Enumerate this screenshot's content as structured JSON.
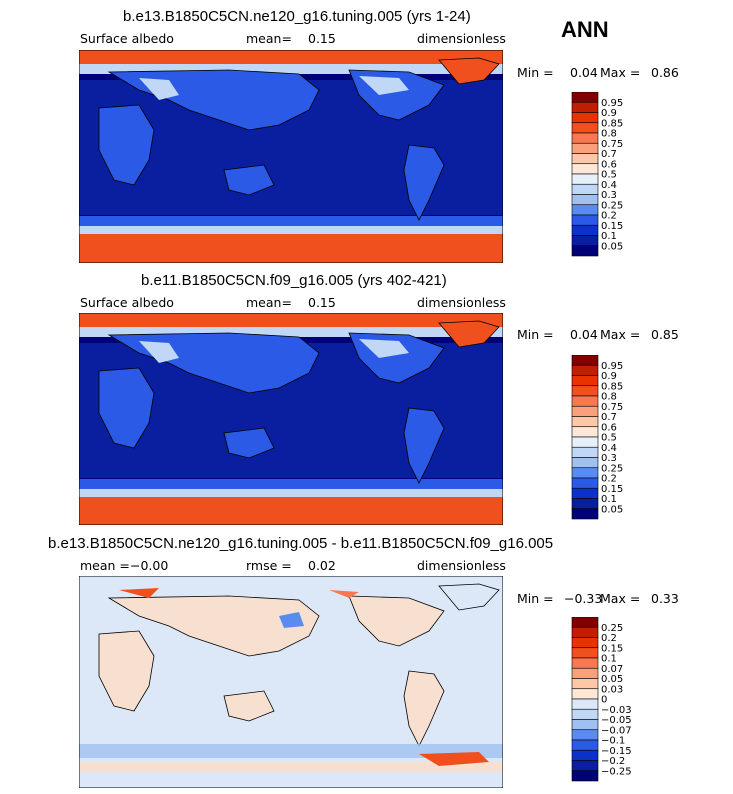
{
  "season": "ANN",
  "panels": [
    {
      "title": "b.e13.B1850C5CN.ne120_g16.tuning.005 (yrs 1-24)",
      "field": "Surface albedo",
      "stat_label": "mean=",
      "stat_value": "0.15",
      "units": "dimensionless",
      "min_label": "Min =",
      "min_value": "0.04",
      "max_label": "Max =",
      "max_value": "0.86",
      "colorbar": [
        "0.95",
        "0.9",
        "0.85",
        "0.8",
        "0.75",
        "0.7",
        "0.6",
        "0.5",
        "0.4",
        "0.3",
        "0.25",
        "0.2",
        "0.15",
        "0.1",
        "0.05"
      ],
      "colors": [
        "#800000",
        "#c01e00",
        "#e83200",
        "#f0501e",
        "#f87850",
        "#fba07c",
        "#fdc8a8",
        "#fde8d8",
        "#e6f0fa",
        "#c0d8f5",
        "#a0c0f0",
        "#5a8cf0",
        "#2a5ae6",
        "#0a32c8",
        "#0a1ea0",
        "#000078"
      ]
    },
    {
      "title": "b.e11.B1850C5CN.f09_g16.005 (yrs 402-421)",
      "field": "Surface albedo",
      "stat_label": "mean=",
      "stat_value": "0.15",
      "units": "dimensionless",
      "min_label": "Min =",
      "min_value": "0.04",
      "max_label": "Max =",
      "max_value": "0.85",
      "colorbar": [
        "0.95",
        "0.9",
        "0.85",
        "0.8",
        "0.75",
        "0.7",
        "0.6",
        "0.5",
        "0.4",
        "0.3",
        "0.25",
        "0.2",
        "0.15",
        "0.1",
        "0.05"
      ],
      "colors": [
        "#800000",
        "#c01e00",
        "#e83200",
        "#f0501e",
        "#f87850",
        "#fba07c",
        "#fdc8a8",
        "#fde8d8",
        "#e6f0fa",
        "#c0d8f5",
        "#a0c0f0",
        "#5a8cf0",
        "#2a5ae6",
        "#0a32c8",
        "#0a1ea0",
        "#000078"
      ]
    },
    {
      "title": "b.e13.B1850C5CN.ne120_g16.tuning.005 - b.e11.B1850C5CN.f09_g16.005",
      "field": "mean =",
      "stat_label": "rmse =",
      "stat_value": "0.02",
      "field_value": "−0.00",
      "units": "dimensionless",
      "min_label": "Min =",
      "min_value": "−0.33",
      "max_label": "Max =",
      "max_value": "0.33",
      "colorbar": [
        "0.25",
        "0.2",
        "0.15",
        "0.1",
        "0.07",
        "0.05",
        "0.03",
        "0",
        "−0.03",
        "−0.05",
        "−0.07",
        "−0.1",
        "−0.15",
        "−0.2",
        "−0.25"
      ],
      "colors": [
        "#800000",
        "#c01e00",
        "#e83200",
        "#f0501e",
        "#f87850",
        "#fba07c",
        "#fdc8a8",
        "#fde8d8",
        "#dce8f8",
        "#c0d8f5",
        "#a0c0f0",
        "#5a8cf0",
        "#2a5ae6",
        "#0a32c8",
        "#0a1ea0",
        "#000078"
      ]
    }
  ],
  "chart_data": [
    {
      "type": "heatmap",
      "title": "b.e13.B1850C5CN.ne120_g16.tuning.005 (yrs 1-24)",
      "variable": "Surface albedo",
      "mean": 0.15,
      "min": 0.04,
      "max": 0.86,
      "units": "dimensionless",
      "levels": [
        0.05,
        0.1,
        0.15,
        0.2,
        0.25,
        0.3,
        0.4,
        0.5,
        0.6,
        0.7,
        0.75,
        0.8,
        0.85,
        0.9,
        0.95
      ]
    },
    {
      "type": "heatmap",
      "title": "b.e11.B1850C5CN.f09_g16.005 (yrs 402-421)",
      "variable": "Surface albedo",
      "mean": 0.15,
      "min": 0.04,
      "max": 0.85,
      "units": "dimensionless",
      "levels": [
        0.05,
        0.1,
        0.15,
        0.2,
        0.25,
        0.3,
        0.4,
        0.5,
        0.6,
        0.7,
        0.75,
        0.8,
        0.85,
        0.9,
        0.95
      ]
    },
    {
      "type": "heatmap",
      "title": "b.e13.B1850C5CN.ne120_g16.tuning.005 - b.e11.B1850C5CN.f09_g16.005",
      "mean": -0.0,
      "rmse": 0.02,
      "min": -0.33,
      "max": 0.33,
      "units": "dimensionless",
      "levels": [
        -0.25,
        -0.2,
        -0.15,
        -0.1,
        -0.07,
        -0.05,
        -0.03,
        0,
        0.03,
        0.05,
        0.07,
        0.1,
        0.15,
        0.2,
        0.25
      ]
    }
  ]
}
